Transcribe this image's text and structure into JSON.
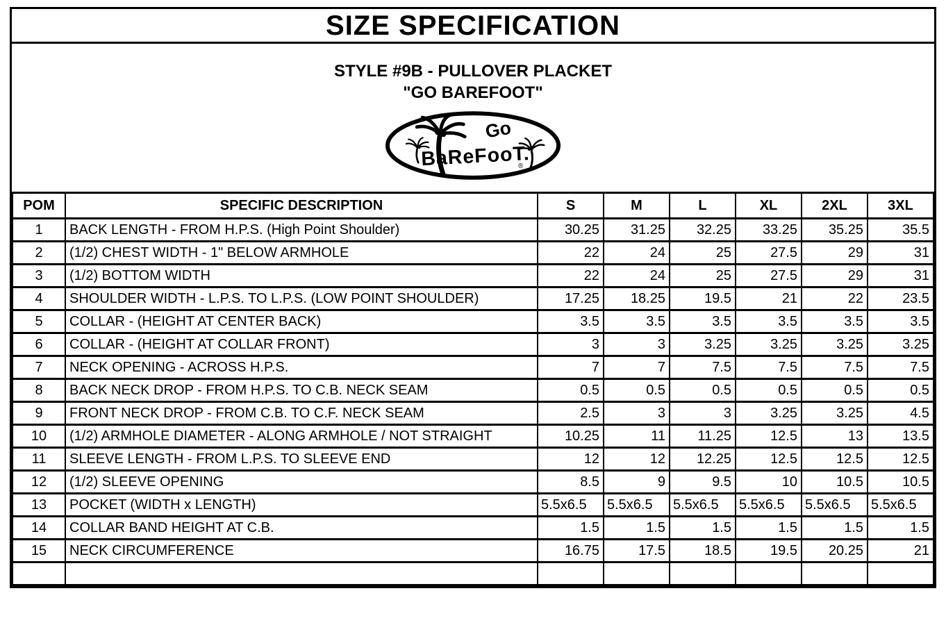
{
  "page": {
    "title": "SIZE SPECIFICATION",
    "style_line": "STYLE #9B - PULLOVER PLACKET",
    "brand_line": "\"GO BAREFOOT\"",
    "logo": {
      "text_top": "Go",
      "text_main": "BaReFooT.",
      "registered_mark": "®"
    },
    "colors": {
      "ink": "#000000",
      "paper": "#ffffff"
    }
  },
  "table": {
    "col_pom": "POM",
    "col_desc": "SPECIFIC DESCRIPTION",
    "sizes": [
      "S",
      "M",
      "L",
      "XL",
      "2XL",
      "3XL"
    ],
    "rows": [
      {
        "pom": "1",
        "desc": "BACK LENGTH - FROM H.P.S. (High Point Shoulder)",
        "values": [
          "30.25",
          "31.25",
          "32.25",
          "33.25",
          "35.25",
          "35.5"
        ],
        "align": "right"
      },
      {
        "pom": "2",
        "desc": "(1/2) CHEST WIDTH - 1\" BELOW ARMHOLE",
        "values": [
          "22",
          "24",
          "25",
          "27.5",
          "29",
          "31"
        ],
        "align": "right"
      },
      {
        "pom": "3",
        "desc": "(1/2) BOTTOM WIDTH",
        "values": [
          "22",
          "24",
          "25",
          "27.5",
          "29",
          "31"
        ],
        "align": "right"
      },
      {
        "pom": "4",
        "desc": "SHOULDER WIDTH - L.P.S. TO L.P.S. (LOW POINT SHOULDER)",
        "values": [
          "17.25",
          "18.25",
          "19.5",
          "21",
          "22",
          "23.5"
        ],
        "align": "right"
      },
      {
        "pom": "5",
        "desc": "COLLAR - (HEIGHT AT CENTER BACK)",
        "values": [
          "3.5",
          "3.5",
          "3.5",
          "3.5",
          "3.5",
          "3.5"
        ],
        "align": "right"
      },
      {
        "pom": "6",
        "desc": "COLLAR - (HEIGHT AT COLLAR FRONT)",
        "values": [
          "3",
          "3",
          "3.25",
          "3.25",
          "3.25",
          "3.25"
        ],
        "align": "right"
      },
      {
        "pom": "7",
        "desc": "NECK OPENING - ACROSS H.P.S.",
        "values": [
          "7",
          "7",
          "7.5",
          "7.5",
          "7.5",
          "7.5"
        ],
        "align": "right"
      },
      {
        "pom": "8",
        "desc": "BACK NECK DROP - FROM H.P.S. TO C.B. NECK SEAM",
        "values": [
          "0.5",
          "0.5",
          "0.5",
          "0.5",
          "0.5",
          "0.5"
        ],
        "align": "right"
      },
      {
        "pom": "9",
        "desc": "FRONT NECK DROP - FROM C.B. TO C.F. NECK SEAM",
        "values": [
          "2.5",
          "3",
          "3",
          "3.25",
          "3.25",
          "4.5"
        ],
        "align": "right"
      },
      {
        "pom": "10",
        "desc": "(1/2) ARMHOLE DIAMETER - ALONG ARMHOLE / NOT STRAIGHT",
        "values": [
          "10.25",
          "11",
          "11.25",
          "12.5",
          "13",
          "13.5"
        ],
        "align": "right"
      },
      {
        "pom": "11",
        "desc": "SLEEVE LENGTH - FROM L.P.S. TO SLEEVE END",
        "values": [
          "12",
          "12",
          "12.25",
          "12.5",
          "12.5",
          "12.5"
        ],
        "align": "right"
      },
      {
        "pom": "12",
        "desc": "(1/2) SLEEVE OPENING",
        "values": [
          "8.5",
          "9",
          "9.5",
          "10",
          "10.5",
          "10.5"
        ],
        "align": "right"
      },
      {
        "pom": "13",
        "desc": "POCKET (WIDTH x LENGTH)",
        "values": [
          "5.5x6.5",
          "5.5x6.5",
          "5.5x6.5",
          "5.5x6.5",
          "5.5x6.5",
          "5.5x6.5"
        ],
        "align": "left"
      },
      {
        "pom": "14",
        "desc": "COLLAR BAND HEIGHT AT C.B.",
        "values": [
          "1.5",
          "1.5",
          "1.5",
          "1.5",
          "1.5",
          "1.5"
        ],
        "align": "right"
      },
      {
        "pom": "15",
        "desc": "NECK CIRCUMFERENCE",
        "values": [
          "16.75",
          "17.5",
          "18.5",
          "19.5",
          "20.25",
          "21"
        ],
        "align": "right"
      },
      {
        "pom": "",
        "desc": "",
        "values": [
          "",
          "",
          "",
          "",
          "",
          ""
        ],
        "align": "right"
      }
    ]
  }
}
